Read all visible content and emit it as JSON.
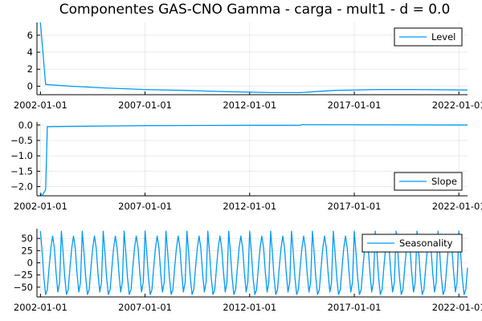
{
  "chart_data": {
    "type": "line",
    "title": "Componentes GAS-CNO Gamma - carga - mult1 - d = 0.0",
    "x_ticks": [
      "2002-01-01",
      "2007-01-01",
      "2012-01-01",
      "2017-01-01",
      "2022-01-01"
    ],
    "x_range": [
      "2001-11-01",
      "2022-06-01"
    ],
    "grid": true,
    "panels": [
      {
        "series": [
          {
            "name": "Level",
            "x": [
              "2002-01-01",
              "2002-04-01",
              "2003-06-01",
              "2005-01-01",
              "2007-01-01",
              "2009-01-01",
              "2011-01-01",
              "2013-01-01",
              "2014-06-01",
              "2016-01-01",
              "2018-01-01",
              "2020-01-01",
              "2022-06-01"
            ],
            "y": [
              7.5,
              0.2,
              0.0,
              -0.2,
              -0.4,
              -0.5,
              -0.65,
              -0.75,
              -0.75,
              -0.5,
              -0.4,
              -0.4,
              -0.45
            ]
          }
        ],
        "y_ticks": [
          0,
          2,
          4,
          6
        ],
        "ylim": [
          -1.0,
          7.5
        ],
        "legend": "top-right"
      },
      {
        "series": [
          {
            "name": "Slope",
            "x": [
              "2002-01-01",
              "2002-02-01",
              "2002-03-01",
              "2002-04-01",
              "2002-05-01",
              "2007-01-01",
              "2012-01-01",
              "2014-06-01",
              "2014-07-01",
              "2022-06-01"
            ],
            "y": [
              -2.2,
              -2.3,
              -2.2,
              -2.1,
              -0.05,
              -0.02,
              -0.01,
              -0.01,
              0.01,
              0.0
            ]
          }
        ],
        "y_ticks": [
          0.0,
          -0.5,
          -1.0,
          -1.5,
          -2.0
        ],
        "ylim": [
          -2.3,
          0.1
        ],
        "legend": "bottom-right"
      },
      {
        "series": [
          {
            "name": "Seasonality",
            "pattern_12": [
              65,
              20,
              -30,
              -65,
              -55,
              -10,
              30,
              55,
              30,
              -20,
              -60,
              -40
            ],
            "start": "2002-01-01",
            "end": "2022-06-01",
            "step_months": 1
          }
        ],
        "y_ticks": [
          50,
          25,
          0,
          -25,
          -50
        ],
        "ylim": [
          -70,
          70
        ],
        "legend": "top-right"
      }
    ]
  }
}
